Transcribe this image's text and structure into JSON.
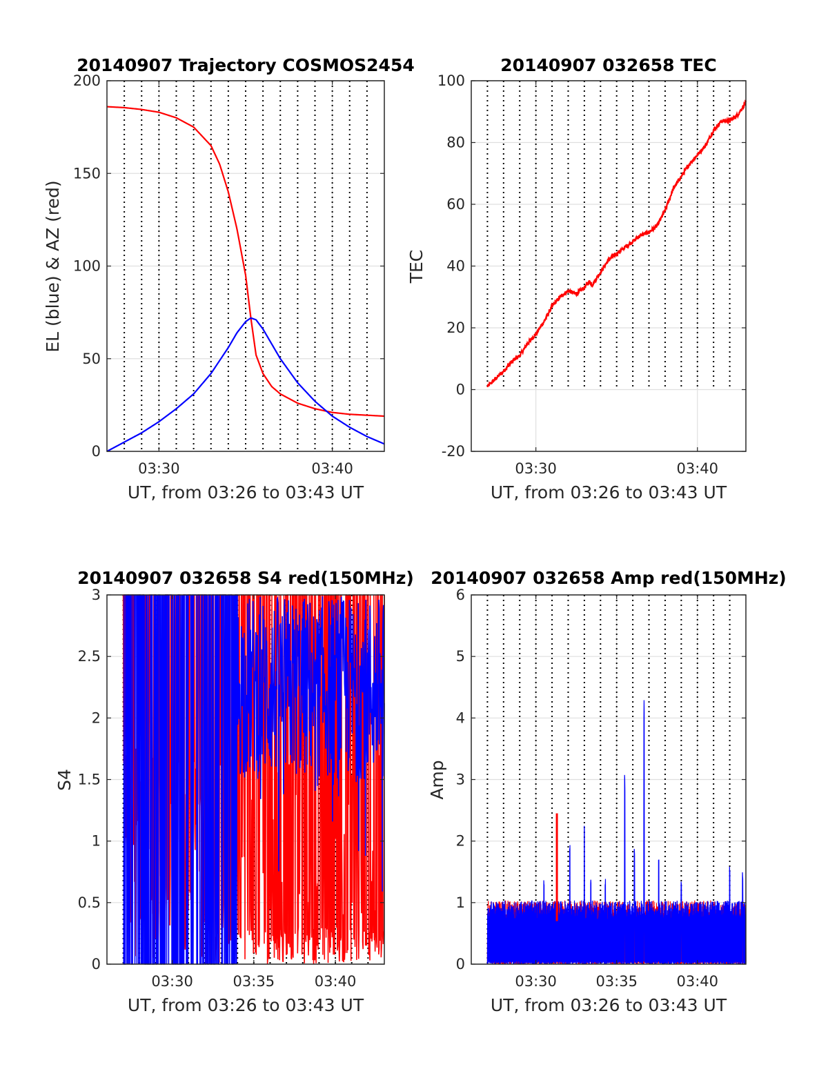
{
  "chart_data": [
    {
      "id": "trajectory",
      "type": "line",
      "title": "20140907 Trajectory COSMOS2454",
      "xlabel": "UT, from 03:26 to 03:43 UT",
      "ylabel": "EL (blue) & AZ (red)",
      "xlim": [
        27.0,
        43.0
      ],
      "ylim": [
        0,
        200
      ],
      "x_unit": "minutes after 03:00 UT",
      "xticks": [
        {
          "value": 30,
          "label": "03:30"
        },
        {
          "value": 40,
          "label": "03:40"
        }
      ],
      "yticks": [
        0,
        50,
        100,
        150,
        200
      ],
      "grid": true,
      "dotted_vlines": [
        28.0,
        29.0,
        30.0,
        31.0,
        32.0,
        33.0,
        34.0,
        35.0,
        36.0,
        37.0,
        38.0,
        39.0,
        40.0,
        41.0,
        42.0
      ],
      "series": [
        {
          "color": "#ff0000",
          "x": [
            27.0,
            28.0,
            29.0,
            30.0,
            31.0,
            32.0,
            33.0,
            33.5,
            34.0,
            34.5,
            35.0,
            35.3,
            35.6,
            36.0,
            36.5,
            37.0,
            38.0,
            39.0,
            40.0,
            41.0,
            42.0,
            43.0
          ],
          "y": [
            186,
            185.5,
            184.5,
            183,
            180,
            175,
            165,
            155,
            140,
            120,
            95,
            72,
            52,
            42,
            35,
            31,
            26,
            23,
            21,
            20,
            19.5,
            19
          ]
        },
        {
          "color": "#0000ff",
          "x": [
            27.0,
            28.0,
            29.0,
            30.0,
            31.0,
            32.0,
            33.0,
            34.0,
            34.5,
            35.0,
            35.3,
            35.6,
            36.0,
            36.5,
            37.0,
            38.0,
            39.0,
            40.0,
            41.0,
            42.0,
            43.0
          ],
          "y": [
            0,
            5,
            10,
            16,
            23,
            31,
            42,
            56,
            64,
            70,
            72,
            71,
            66,
            58,
            50,
            37,
            27,
            19,
            13,
            8,
            4
          ]
        }
      ]
    },
    {
      "id": "tec",
      "type": "line",
      "title": "20140907 032658 TEC",
      "xlabel": "UT, from 03:26 to 03:43 UT",
      "ylabel": "TEC",
      "xlim": [
        26.0,
        43.0
      ],
      "ylim": [
        -20,
        100
      ],
      "x_unit": "minutes after 03:00 UT",
      "xticks": [
        {
          "value": 30,
          "label": "03:30"
        },
        {
          "value": 40,
          "label": "03:40"
        }
      ],
      "yticks": [
        -20,
        0,
        20,
        40,
        60,
        80,
        100
      ],
      "grid": true,
      "dotted_vlines": [
        27.0,
        28.0,
        29.0,
        30.0,
        31.0,
        32.0,
        33.0,
        34.0,
        35.0,
        36.0,
        37.0,
        38.0,
        39.0,
        40.0,
        41.0,
        42.0
      ],
      "dotted_vlines_ymin": 0,
      "series": [
        {
          "color": "#ff0000",
          "noise": 0.6,
          "x": [
            27.0,
            27.5,
            28.0,
            28.5,
            29.0,
            29.5,
            30.0,
            30.5,
            31.0,
            31.5,
            32.0,
            32.5,
            33.0,
            33.3,
            33.5,
            34.0,
            34.5,
            35.0,
            35.5,
            36.0,
            36.5,
            37.0,
            37.5,
            38.0,
            38.5,
            39.0,
            39.5,
            40.0,
            40.5,
            41.0,
            41.5,
            42.0,
            42.5,
            43.0
          ],
          "y": [
            1,
            3.5,
            6,
            9,
            11,
            15,
            18,
            22,
            27,
            30,
            32,
            31,
            33,
            35,
            34,
            38,
            42,
            44,
            46,
            48,
            50,
            51,
            53,
            58,
            65,
            69,
            73,
            76,
            79,
            84,
            87,
            87,
            89,
            93
          ]
        }
      ]
    },
    {
      "id": "s4",
      "type": "line",
      "title": "20140907 032658 S4 red(150MHz)",
      "xlabel": "UT, from 03:26 to 03:43 UT",
      "ylabel": "S4",
      "xlim": [
        26.0,
        43.0
      ],
      "ylim": [
        0,
        3
      ],
      "x_unit": "minutes after 03:00 UT",
      "xticks": [
        {
          "value": 30,
          "label": "03:30"
        },
        {
          "value": 35,
          "label": "03:35"
        },
        {
          "value": 40,
          "label": "03:40"
        }
      ],
      "yticks": [
        0,
        0.5,
        1,
        1.5,
        2,
        2.5,
        3
      ],
      "grid": true,
      "dotted_vlines": [
        27.0,
        28.0,
        29.0,
        30.0,
        31.0,
        32.0,
        33.0,
        34.0,
        35.0,
        36.0,
        37.0,
        38.0,
        39.0,
        40.0,
        41.0,
        42.0
      ],
      "series": [
        {
          "color": "#ff0000",
          "x_range": [
            27.0,
            43.0
          ],
          "pattern": "saturated noise, frequent drops to 0 especially 03:32 to 03:43",
          "typical_low": [
            0,
            1.8
          ],
          "typical_high": 3
        },
        {
          "color": "#0000ff",
          "x_range": [
            27.0,
            43.0
          ],
          "pattern": "saturated noise near 3, dips to 1.5-2.3 after 03:35, drops to 0 before 03:34",
          "typical_low": [
            1.5,
            2.4
          ],
          "typical_high": 3
        }
      ]
    },
    {
      "id": "amp",
      "type": "line",
      "title": "20140907 032658 Amp red(150MHz)",
      "xlabel": "UT, from 03:26 to 03:43 UT",
      "ylabel": "Amp",
      "xlim": [
        26.0,
        43.0
      ],
      "ylim": [
        0,
        6
      ],
      "x_unit": "minutes after 03:00 UT",
      "xticks": [
        {
          "value": 30,
          "label": "03:30"
        },
        {
          "value": 35,
          "label": "03:35"
        },
        {
          "value": 40,
          "label": "03:40"
        }
      ],
      "yticks": [
        0,
        1,
        2,
        3,
        4,
        5,
        6
      ],
      "grid": true,
      "dotted_vlines": [
        27.0,
        28.0,
        29.0,
        30.0,
        31.0,
        32.0,
        33.0,
        34.0,
        35.0,
        36.0,
        37.0,
        38.0,
        39.0,
        40.0,
        41.0,
        42.0
      ],
      "series": [
        {
          "color": "#ff0000",
          "x_range": [
            27.0,
            43.0
          ],
          "baseline": 0.9,
          "spikes": [
            {
              "x": 31.3,
              "y": 2.45
            }
          ]
        },
        {
          "color": "#0000ff",
          "x_range": [
            27.0,
            43.0
          ],
          "baseline": 0.9,
          "spikes": [
            {
              "x": 30.5,
              "y": 1.4
            },
            {
              "x": 32.1,
              "y": 2.0
            },
            {
              "x": 33.0,
              "y": 2.25
            },
            {
              "x": 33.4,
              "y": 1.4
            },
            {
              "x": 34.3,
              "y": 1.4
            },
            {
              "x": 35.5,
              "y": 3.1
            },
            {
              "x": 36.1,
              "y": 1.9
            },
            {
              "x": 36.7,
              "y": 4.4
            },
            {
              "x": 37.6,
              "y": 1.7
            },
            {
              "x": 39.0,
              "y": 1.4
            },
            {
              "x": 42.0,
              "y": 1.6
            },
            {
              "x": 42.8,
              "y": 1.5
            }
          ]
        }
      ]
    }
  ]
}
